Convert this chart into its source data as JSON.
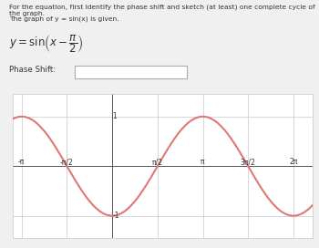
{
  "title_line1": "For the equation, first identify the phase shift and sketch (at least) one complete cycle of the graph.",
  "title_line2": "The graph of y = sin(x) is given.",
  "curve_color": "#e07878",
  "curve_linewidth": 1.5,
  "background_color": "#f0f0f0",
  "plot_bg_color": "#ffffff",
  "grid_color": "#c8c8c8",
  "axis_color": "#555555",
  "text_color": "#333333",
  "xlim": [
    -3.45,
    6.95
  ],
  "ylim": [
    -1.45,
    1.45
  ],
  "xticks": [
    -3.14159265,
    -1.5707963,
    0,
    1.5707963,
    3.14159265,
    4.71238898,
    6.28318531
  ],
  "xtick_labels": [
    "-π",
    "-π/2",
    "",
    "π/2",
    "π",
    "3π/2",
    "2π"
  ],
  "y_label_1": "1",
  "y_label_neg1": "-1",
  "y_pos_1": 1.0,
  "y_pos_neg1": -1.0,
  "x_label_1_pos": 0.0,
  "phase_shift_label": "Phase Shift:",
  "equation_text": "$y = \\sin\\!\\left(x - \\dfrac{\\pi}{2}\\right)$"
}
